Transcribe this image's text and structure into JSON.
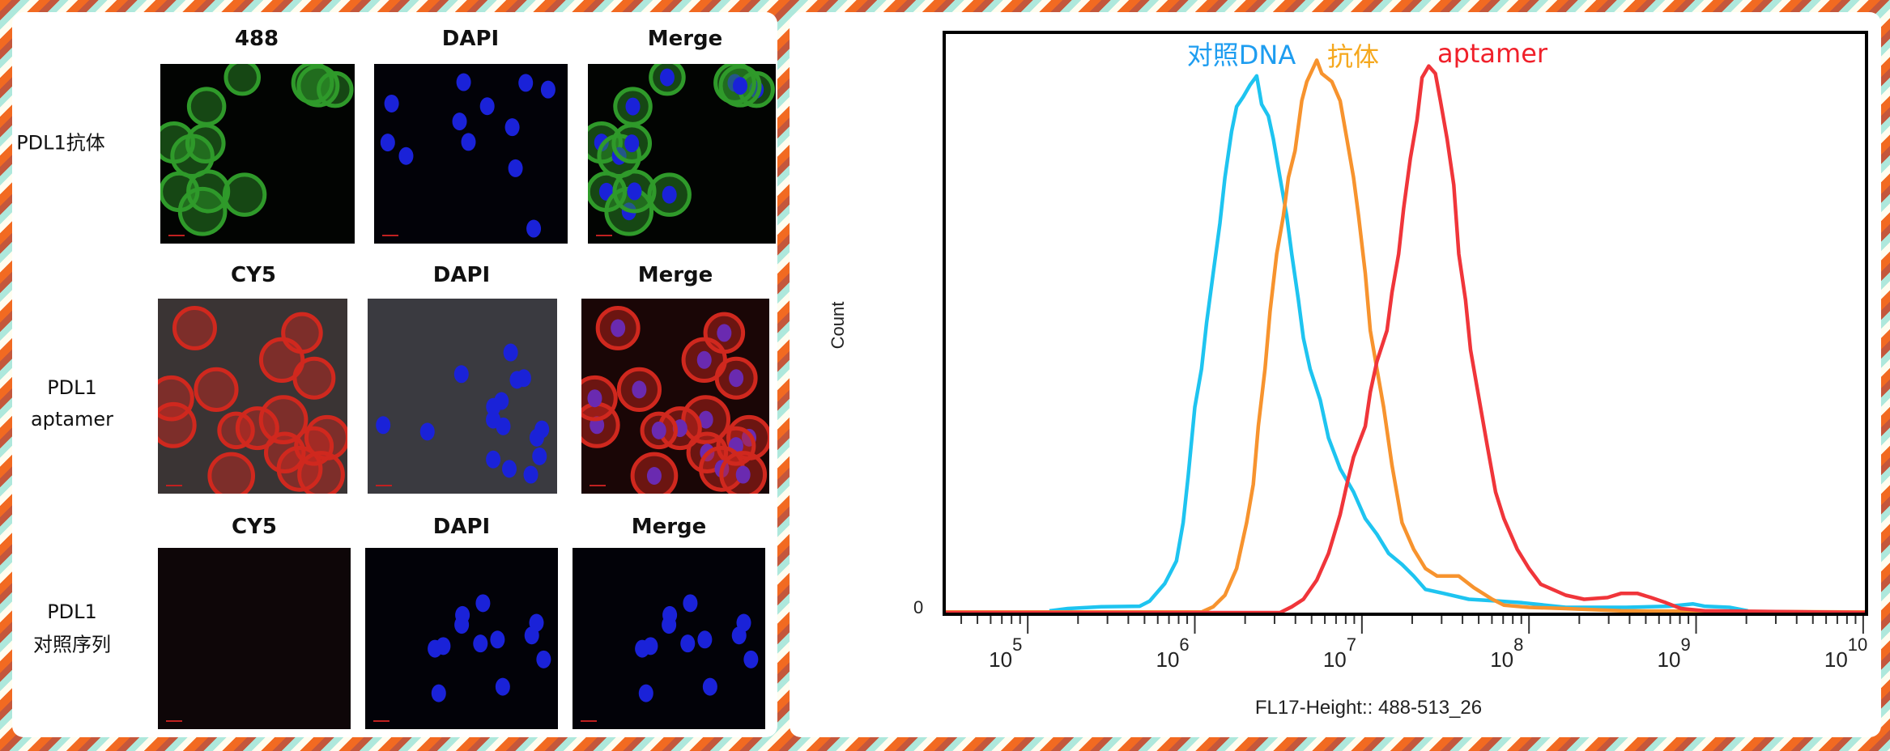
{
  "microscopy": {
    "rows": [
      {
        "label": "PDL1抗体",
        "label_lines": [
          "PDL1抗体"
        ],
        "headers": [
          "488",
          "DAPI",
          "Merge"
        ]
      },
      {
        "label": "PDL1 aptamer",
        "label_lines": [
          "PDL1",
          "aptamer"
        ],
        "headers": [
          "CY5",
          "DAPI",
          "Merge"
        ]
      },
      {
        "label": "PDL1 对照序列",
        "label_lines": [
          "PDL1",
          "对照序列"
        ],
        "headers": [
          "CY5",
          "DAPI",
          "Merge"
        ]
      }
    ]
  },
  "chart_data": {
    "type": "line",
    "title": "",
    "xlabel": "FL17-Height:: 488-513_26",
    "ylabel": "Count",
    "x_scale": "log10",
    "xlim_log10": [
      4.5,
      10.02
    ],
    "ylim": [
      0,
      100
    ],
    "y_tick_labels": [
      "0"
    ],
    "x_tick_labels": [
      {
        "base": "10",
        "exp": "5"
      },
      {
        "base": "10",
        "exp": "6"
      },
      {
        "base": "10",
        "exp": "7"
      },
      {
        "base": "10",
        "exp": "8"
      },
      {
        "base": "10",
        "exp": "9"
      },
      {
        "base": "10",
        "exp": "10"
      }
    ],
    "legend_placement": "top, inline above peaks",
    "series": [
      {
        "name": "对照DNA",
        "color": "#1ec4f0",
        "label_color": "#1e9df0",
        "points": [
          [
            5.13,
            0.3
          ],
          [
            5.24,
            0.7
          ],
          [
            5.44,
            1.0
          ],
          [
            5.67,
            1.1
          ],
          [
            5.73,
            2.0
          ],
          [
            5.82,
            5.0
          ],
          [
            5.89,
            8.9
          ],
          [
            5.93,
            15.5
          ],
          [
            5.96,
            23.5
          ],
          [
            6.0,
            35.4
          ],
          [
            6.04,
            42.0
          ],
          [
            6.07,
            49.9
          ],
          [
            6.11,
            58.5
          ],
          [
            6.15,
            67.1
          ],
          [
            6.18,
            75.0
          ],
          [
            6.22,
            82.9
          ],
          [
            6.25,
            87.2
          ],
          [
            6.29,
            88.9
          ],
          [
            6.33,
            90.9
          ],
          [
            6.37,
            92.5
          ],
          [
            6.4,
            87.6
          ],
          [
            6.44,
            85.6
          ],
          [
            6.47,
            81.6
          ],
          [
            6.51,
            75.0
          ],
          [
            6.55,
            68.4
          ],
          [
            6.58,
            61.8
          ],
          [
            6.62,
            53.9
          ],
          [
            6.65,
            47.3
          ],
          [
            6.69,
            42.0
          ],
          [
            6.75,
            36.7
          ],
          [
            6.8,
            30.1
          ],
          [
            6.87,
            24.8
          ],
          [
            6.95,
            20.8
          ],
          [
            7.02,
            16.2
          ],
          [
            7.09,
            13.5
          ],
          [
            7.16,
            10.2
          ],
          [
            7.24,
            8.3
          ],
          [
            7.31,
            6.3
          ],
          [
            7.38,
            4.0
          ],
          [
            7.49,
            3.3
          ],
          [
            7.64,
            2.3
          ],
          [
            7.82,
            2.0
          ],
          [
            7.96,
            1.7
          ],
          [
            8.22,
            0.9
          ],
          [
            8.58,
            0.9
          ],
          [
            8.84,
            1.1
          ],
          [
            8.98,
            1.5
          ],
          [
            9.05,
            1.1
          ],
          [
            9.2,
            0.9
          ],
          [
            9.31,
            0.3
          ]
        ]
      },
      {
        "name": "抗体",
        "color": "#f7932e",
        "label_color": "#f5a81e",
        "points": [
          [
            4.5,
            0.1
          ],
          [
            6.04,
            0.1
          ],
          [
            6.11,
            1.0
          ],
          [
            6.18,
            3.0
          ],
          [
            6.25,
            7.6
          ],
          [
            6.31,
            15.5
          ],
          [
            6.35,
            22.1
          ],
          [
            6.38,
            32.1
          ],
          [
            6.42,
            42.0
          ],
          [
            6.45,
            51.9
          ],
          [
            6.49,
            61.8
          ],
          [
            6.53,
            68.4
          ],
          [
            6.56,
            75.0
          ],
          [
            6.6,
            79.6
          ],
          [
            6.64,
            88.2
          ],
          [
            6.67,
            91.5
          ],
          [
            6.73,
            95.2
          ],
          [
            6.76,
            92.9
          ],
          [
            6.82,
            91.5
          ],
          [
            6.87,
            88.2
          ],
          [
            6.91,
            81.6
          ],
          [
            6.95,
            75.0
          ],
          [
            6.98,
            68.4
          ],
          [
            7.02,
            58.5
          ],
          [
            7.05,
            48.6
          ],
          [
            7.09,
            42.0
          ],
          [
            7.13,
            35.4
          ],
          [
            7.18,
            25.4
          ],
          [
            7.24,
            15.5
          ],
          [
            7.31,
            10.9
          ],
          [
            7.38,
            7.6
          ],
          [
            7.45,
            6.3
          ],
          [
            7.58,
            6.3
          ],
          [
            7.67,
            4.3
          ],
          [
            7.78,
            2.3
          ],
          [
            7.85,
            1.3
          ],
          [
            8.0,
            0.9
          ],
          [
            8.22,
            0.7
          ],
          [
            8.55,
            0.3
          ],
          [
            10.02,
            0.1
          ]
        ]
      },
      {
        "name": "aptamer",
        "color": "#f0353a",
        "label_color": "#f0202a",
        "points": [
          [
            4.5,
            0
          ],
          [
            6.51,
            0
          ],
          [
            6.58,
            1.0
          ],
          [
            6.65,
            2.3
          ],
          [
            6.73,
            5.6
          ],
          [
            6.8,
            10.2
          ],
          [
            6.87,
            16.9
          ],
          [
            6.91,
            22.1
          ],
          [
            6.95,
            26.8
          ],
          [
            7.02,
            32.1
          ],
          [
            7.05,
            38.0
          ],
          [
            7.09,
            43.3
          ],
          [
            7.15,
            48.6
          ],
          [
            7.18,
            55.2
          ],
          [
            7.22,
            61.8
          ],
          [
            7.25,
            69.7
          ],
          [
            7.29,
            78.3
          ],
          [
            7.33,
            84.9
          ],
          [
            7.36,
            92.2
          ],
          [
            7.4,
            94.2
          ],
          [
            7.44,
            92.9
          ],
          [
            7.47,
            88.2
          ],
          [
            7.51,
            81.6
          ],
          [
            7.55,
            73.7
          ],
          [
            7.58,
            61.8
          ],
          [
            7.62,
            53.9
          ],
          [
            7.65,
            45.3
          ],
          [
            7.69,
            38.7
          ],
          [
            7.75,
            28.8
          ],
          [
            7.8,
            20.8
          ],
          [
            7.85,
            16.2
          ],
          [
            7.93,
            10.9
          ],
          [
            8.0,
            7.6
          ],
          [
            8.07,
            4.9
          ],
          [
            8.22,
            3.0
          ],
          [
            8.33,
            2.3
          ],
          [
            8.47,
            2.6
          ],
          [
            8.55,
            3.3
          ],
          [
            8.65,
            3.3
          ],
          [
            8.73,
            2.6
          ],
          [
            8.82,
            1.7
          ],
          [
            8.91,
            0.7
          ],
          [
            9.05,
            0.3
          ],
          [
            10.02,
            0
          ]
        ]
      }
    ]
  }
}
